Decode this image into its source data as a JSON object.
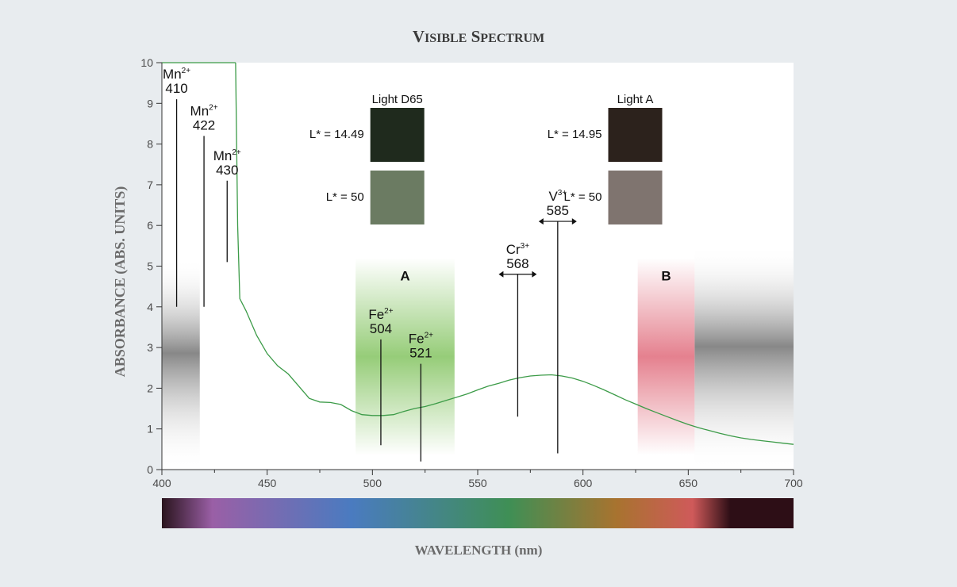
{
  "chart_data": {
    "type": "line",
    "title": "Visible Spectrum",
    "xlabel": "WAVELENGTH (nm)",
    "ylabel": "ABSORBANCE (ABS. UNITS)",
    "xlim": [
      400,
      700
    ],
    "ylim": [
      0,
      10
    ],
    "x_ticks": [
      400,
      450,
      500,
      550,
      600,
      650,
      700
    ],
    "y_ticks": [
      0,
      1,
      2,
      3,
      4,
      5,
      6,
      7,
      8,
      9,
      10
    ],
    "grid": false,
    "series": [
      {
        "color": "#3c9b48",
        "x": [
          435,
          436,
          437,
          440,
          445,
          450,
          455,
          460,
          465,
          470,
          475,
          480,
          485,
          490,
          495,
          500,
          505,
          510,
          515,
          520,
          525,
          530,
          535,
          540,
          545,
          550,
          555,
          560,
          565,
          570,
          575,
          580,
          585,
          590,
          595,
          600,
          605,
          610,
          615,
          620,
          625,
          630,
          635,
          640,
          645,
          650,
          655,
          660,
          665,
          670,
          675,
          680,
          685,
          690,
          695,
          700
        ],
        "y": [
          10,
          6,
          4.2,
          3.9,
          3.3,
          2.85,
          2.55,
          2.35,
          2.05,
          1.75,
          1.66,
          1.65,
          1.6,
          1.45,
          1.35,
          1.33,
          1.33,
          1.35,
          1.43,
          1.5,
          1.55,
          1.62,
          1.7,
          1.78,
          1.86,
          1.96,
          2.05,
          2.12,
          2.2,
          2.26,
          2.3,
          2.32,
          2.33,
          2.3,
          2.25,
          2.17,
          2.07,
          1.96,
          1.84,
          1.72,
          1.61,
          1.5,
          1.4,
          1.3,
          1.2,
          1.11,
          1.03,
          0.96,
          0.89,
          0.83,
          0.78,
          0.74,
          0.71,
          0.68,
          0.65,
          0.62
        ]
      }
    ],
    "annotations": [
      {
        "ion": "Mn",
        "charge": "2+",
        "wavelength": "410",
        "x": 407,
        "y_top": 9.1,
        "y_bottom": 4.0
      },
      {
        "ion": "Mn",
        "charge": "2+",
        "wavelength": "422",
        "x": 420,
        "y_top": 8.2,
        "y_bottom": 4.0
      },
      {
        "ion": "Mn",
        "charge": "2+",
        "wavelength": "430",
        "x": 431,
        "y_top": 7.1,
        "y_bottom": 5.1
      },
      {
        "ion": "Fe",
        "charge": "2+",
        "wavelength": "504",
        "x": 504,
        "y_top": 3.2,
        "y_bottom": 0.6
      },
      {
        "ion": "Fe",
        "charge": "2+",
        "wavelength": "521",
        "x": 523,
        "y_top": 2.6,
        "y_bottom": 0.2
      },
      {
        "ion": "Cr",
        "charge": "3+",
        "wavelength": "568",
        "x": 569,
        "y_top": 4.8,
        "y_bottom": 1.3,
        "arrow": true
      },
      {
        "ion": "V",
        "charge": "3+",
        "wavelength": "585",
        "x": 588,
        "y_top": 6.1,
        "y_bottom": 0.4,
        "arrow": true
      }
    ],
    "bands": [
      {
        "label": "A",
        "from": 492,
        "to": 539,
        "color": "#7cc057"
      },
      {
        "label": "B",
        "from": 626,
        "to": 653,
        "color": "#e06b7b"
      }
    ],
    "swatches": [
      {
        "light": "Light D65",
        "items": [
          {
            "label": "L* = 14.49",
            "color": "#1f2a1d"
          },
          {
            "label": "L* = 50",
            "color": "#6b7b62"
          }
        ]
      },
      {
        "light": "Light A",
        "items": [
          {
            "label": "L* = 14.95",
            "color": "#2c221c"
          },
          {
            "label": "L* = 50",
            "color": "#7f746f"
          }
        ]
      }
    ],
    "colorbar": [
      "#2a141d",
      "#9a5fa6",
      "#4a7bc0",
      "#3f8f55",
      "#a8732f",
      "#cf5a5a",
      "#2d0e16"
    ]
  }
}
